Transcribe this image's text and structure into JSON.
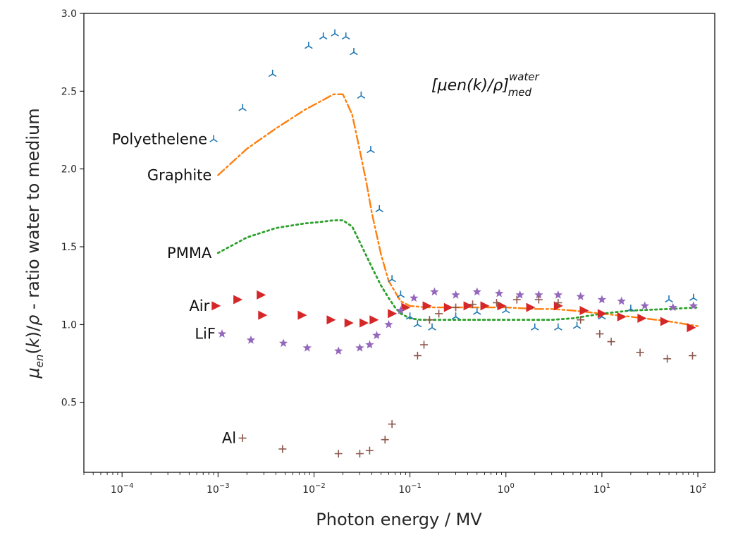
{
  "chart_data": {
    "type": "scatter",
    "xlabel": "Photon energy / MV",
    "ylabel": "μen(k)/ρ - ratio water to medium",
    "xscale": "log",
    "xlim": [
      4e-05,
      150
    ],
    "ylim": [
      0.05,
      3.0
    ],
    "x_ticks": [
      {
        "value": 0.0001,
        "base": "10",
        "exp": "−4"
      },
      {
        "value": 0.001,
        "base": "10",
        "exp": "−3"
      },
      {
        "value": 0.01,
        "base": "10",
        "exp": "−2"
      },
      {
        "value": 0.1,
        "base": "10",
        "exp": "−1"
      },
      {
        "value": 1,
        "base": "10",
        "exp": "0"
      },
      {
        "value": 10,
        "base": "10",
        "exp": "1"
      },
      {
        "value": 100,
        "base": "10",
        "exp": "2"
      }
    ],
    "y_ticks": [
      "0.5",
      "1.0",
      "1.5",
      "2.0",
      "2.5",
      "3.0"
    ],
    "grid": false,
    "header_annotation": {
      "base": "[μen(k)/ρ]",
      "sup": "water",
      "sub": "med"
    },
    "series": [
      {
        "name": "Polyethelene",
        "style": "markers",
        "marker": "tri",
        "color": "#1f77b4",
        "x": [
          0.0009,
          0.0018,
          0.0037,
          0.0088,
          0.0125,
          0.0165,
          0.0215,
          0.026,
          0.031,
          0.039,
          0.048,
          0.065,
          0.08,
          0.1,
          0.12,
          0.17,
          0.3,
          0.5,
          1.0,
          2.0,
          3.5,
          5.5,
          10,
          20,
          50,
          90
        ],
        "y": [
          2.19,
          2.39,
          2.61,
          2.79,
          2.85,
          2.87,
          2.85,
          2.75,
          2.47,
          2.12,
          1.74,
          1.29,
          1.19,
          1.05,
          1.0,
          0.98,
          1.05,
          1.08,
          1.09,
          0.98,
          0.98,
          0.99,
          1.05,
          1.1,
          1.16,
          1.17
        ]
      },
      {
        "name": "Graphite",
        "style": "dashdot",
        "color": "#ff7f0e",
        "x": [
          0.001,
          0.002,
          0.004,
          0.008,
          0.013,
          0.016,
          0.02,
          0.025,
          0.03,
          0.035,
          0.04,
          0.05,
          0.06,
          0.08,
          0.1,
          0.15,
          0.2,
          0.3,
          0.5,
          1,
          2,
          3,
          5,
          10,
          20,
          50,
          100
        ],
        "y": [
          1.96,
          2.13,
          2.26,
          2.38,
          2.45,
          2.48,
          2.48,
          2.35,
          2.12,
          1.92,
          1.72,
          1.45,
          1.28,
          1.15,
          1.12,
          1.11,
          1.11,
          1.11,
          1.11,
          1.11,
          1.1,
          1.1,
          1.09,
          1.07,
          1.05,
          1.02,
          0.99
        ]
      },
      {
        "name": "PMMA",
        "style": "dotted",
        "color": "#2ca02c",
        "x": [
          0.001,
          0.002,
          0.004,
          0.008,
          0.012,
          0.016,
          0.02,
          0.025,
          0.03,
          0.04,
          0.05,
          0.06,
          0.07,
          0.08,
          0.1,
          0.13,
          0.2,
          0.3,
          0.5,
          1,
          2,
          3,
          5,
          10,
          20,
          50,
          100
        ],
        "y": [
          1.46,
          1.56,
          1.62,
          1.65,
          1.66,
          1.67,
          1.67,
          1.63,
          1.53,
          1.37,
          1.25,
          1.17,
          1.11,
          1.07,
          1.04,
          1.03,
          1.03,
          1.03,
          1.03,
          1.03,
          1.03,
          1.03,
          1.04,
          1.07,
          1.09,
          1.1,
          1.11
        ]
      },
      {
        "name": "Air",
        "style": "markers",
        "marker": "triangle-right",
        "color": "#d62728",
        "x": [
          0.00095,
          0.0016,
          0.0028,
          0.0029,
          0.0075,
          0.015,
          0.023,
          0.033,
          0.042,
          0.065,
          0.09,
          0.15,
          0.25,
          0.4,
          0.6,
          0.9,
          1.8,
          3.5,
          6.5,
          10,
          16,
          26,
          45,
          85
        ],
        "y": [
          1.12,
          1.16,
          1.19,
          1.06,
          1.06,
          1.03,
          1.01,
          1.01,
          1.03,
          1.07,
          1.11,
          1.12,
          1.11,
          1.12,
          1.12,
          1.12,
          1.11,
          1.12,
          1.09,
          1.07,
          1.05,
          1.04,
          1.02,
          0.98
        ]
      },
      {
        "name": "LiF",
        "style": "markers",
        "marker": "star",
        "color": "#9467bd",
        "x": [
          0.0011,
          0.0022,
          0.0048,
          0.0085,
          0.018,
          0.03,
          0.038,
          0.045,
          0.06,
          0.08,
          0.11,
          0.18,
          0.3,
          0.5,
          0.85,
          1.4,
          2.2,
          3.5,
          6,
          10,
          16,
          28,
          55,
          90
        ],
        "y": [
          0.94,
          0.9,
          0.88,
          0.85,
          0.83,
          0.85,
          0.87,
          0.93,
          1.0,
          1.09,
          1.17,
          1.21,
          1.19,
          1.21,
          1.2,
          1.19,
          1.19,
          1.19,
          1.18,
          1.16,
          1.15,
          1.12,
          1.11,
          1.12
        ]
      },
      {
        "name": "Al",
        "style": "markers",
        "marker": "plus",
        "color": "#8c564b",
        "x": [
          0.0018,
          0.0047,
          0.018,
          0.03,
          0.038,
          0.055,
          0.065,
          0.12,
          0.14,
          0.16,
          0.2,
          0.3,
          0.45,
          0.8,
          1.3,
          2.2,
          3.5,
          6,
          9.5,
          12.5,
          25,
          48,
          88
        ],
        "y": [
          0.27,
          0.2,
          0.17,
          0.17,
          0.19,
          0.26,
          0.36,
          0.8,
          0.87,
          1.03,
          1.07,
          1.11,
          1.13,
          1.14,
          1.16,
          1.16,
          1.14,
          1.03,
          0.94,
          0.89,
          0.82,
          0.78,
          0.8
        ]
      }
    ]
  }
}
